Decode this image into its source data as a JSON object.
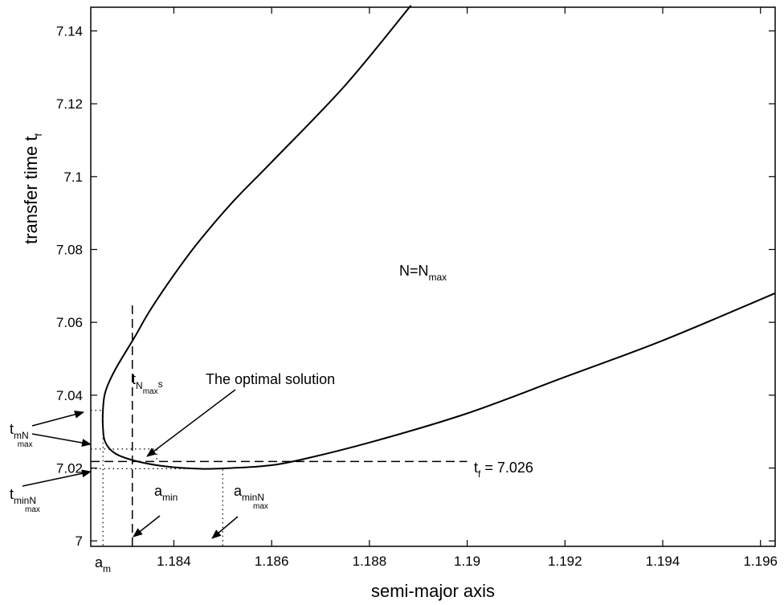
{
  "chart_data": {
    "type": "line",
    "xlabel": "semi-major axis",
    "ylabel_main": "transfer time t",
    "ylabel_sub": "f",
    "xlim": [
      1.1823,
      1.1963
    ],
    "ylim": [
      6.9985,
      7.1465
    ],
    "x_ticks": [
      1.184,
      1.186,
      1.188,
      1.19,
      1.192,
      1.194,
      1.196
    ],
    "x_tick_labels": [
      "1.184",
      "1.186",
      "1.188",
      "1.19",
      "1.192",
      "1.194",
      "1.196"
    ],
    "y_ticks": [
      7.0,
      7.02,
      7.04,
      7.06,
      7.08,
      7.1,
      7.12,
      7.14
    ],
    "y_tick_labels": [
      "7",
      "7.02",
      "7.04",
      "7.06",
      "7.08",
      "7.1",
      "7.12",
      "7.14"
    ],
    "series": [
      {
        "x": [
          1.18885,
          1.1875,
          1.186,
          1.1852,
          1.1845,
          1.184,
          1.1835,
          1.1832,
          1.1828,
          1.1826,
          1.18255,
          1.18255,
          1.1826,
          1.1828,
          1.1832,
          1.1838,
          1.1845,
          1.185,
          1.1858,
          1.1865,
          1.188,
          1.19,
          1.192,
          1.194,
          1.1963
        ],
        "y": [
          7.147,
          7.125,
          7.104,
          7.093,
          7.082,
          7.073,
          7.063,
          7.056,
          7.047,
          7.041,
          7.036,
          7.031,
          7.027,
          7.024,
          7.022,
          7.0205,
          7.0198,
          7.0199,
          7.0205,
          7.022,
          7.027,
          7.035,
          7.045,
          7.055,
          7.068
        ]
      }
    ],
    "reference_lines": [
      {
        "kind": "vertical-dashed",
        "x": 1.18315,
        "y_range": [
          6.9985,
          7.065
        ]
      },
      {
        "kind": "horizontal-dashed",
        "y": 7.0218,
        "x_range": [
          1.1823,
          1.19
        ]
      },
      {
        "kind": "dotted",
        "points": [
          [
            1.1823,
            7.0358
          ],
          [
            1.18255,
            7.0358
          ],
          [
            1.18255,
            6.9985
          ]
        ]
      },
      {
        "kind": "dotted",
        "points": [
          [
            1.1823,
            7.0252
          ],
          [
            1.18365,
            7.0252
          ],
          [
            1.18365,
            7.0215
          ]
        ]
      },
      {
        "kind": "dotted",
        "points": [
          [
            1.1823,
            7.0198
          ],
          [
            1.185,
            7.0198
          ],
          [
            1.185,
            6.9985
          ]
        ]
      }
    ],
    "annotations": {
      "region_main": "N=N",
      "region_sub": "max",
      "optimal": "The optimal solution",
      "tf_main": "t",
      "tf_sub": "f",
      "tf_value": " = 7.026",
      "tNmaxs_t": "t",
      "tNmaxs_N": "N",
      "tNmaxs_max": "max",
      "tNmaxs_s": "s",
      "tmN_t": "t",
      "tmN_mN": "mN",
      "tmN_max": "max",
      "tminN_t": "t",
      "tminN_minN": "minN",
      "tminN_max": "max",
      "amin_a": "a",
      "amin_min": "min",
      "aminN_a": "a",
      "aminN_minN": "minN",
      "aminN_max": "max",
      "am_a": "a",
      "am_m": "m"
    }
  }
}
